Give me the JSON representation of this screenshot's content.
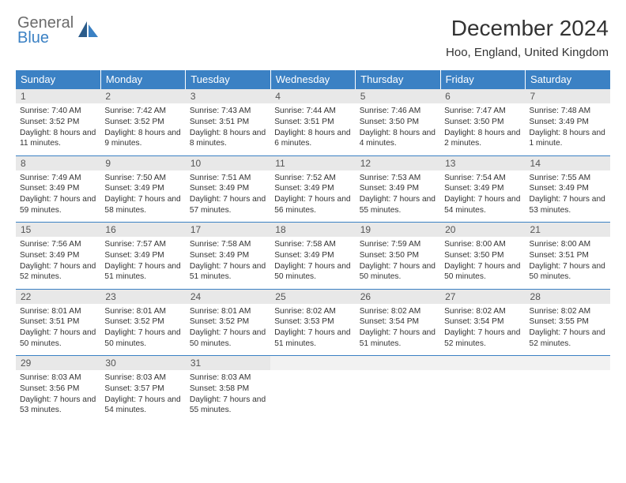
{
  "brand": {
    "top": "General",
    "bottom": "Blue"
  },
  "title": "December 2024",
  "location": "Hoo, England, United Kingdom",
  "colors": {
    "header_bg": "#3b81c4",
    "header_text": "#ffffff",
    "daynum_bg": "#e8e8e8",
    "border": "#3b81c4",
    "body_text": "#333333",
    "logo_gray": "#6b6b6b"
  },
  "typography": {
    "title_fontsize": 28,
    "location_fontsize": 15,
    "header_fontsize": 13,
    "daynum_fontsize": 12,
    "cell_fontsize": 10.2
  },
  "calendar": {
    "columns": [
      "Sunday",
      "Monday",
      "Tuesday",
      "Wednesday",
      "Thursday",
      "Friday",
      "Saturday"
    ],
    "weeks": [
      [
        {
          "day": "1",
          "sunrise": "7:40 AM",
          "sunset": "3:52 PM",
          "daylight": "8 hours and 11 minutes."
        },
        {
          "day": "2",
          "sunrise": "7:42 AM",
          "sunset": "3:52 PM",
          "daylight": "8 hours and 9 minutes."
        },
        {
          "day": "3",
          "sunrise": "7:43 AM",
          "sunset": "3:51 PM",
          "daylight": "8 hours and 8 minutes."
        },
        {
          "day": "4",
          "sunrise": "7:44 AM",
          "sunset": "3:51 PM",
          "daylight": "8 hours and 6 minutes."
        },
        {
          "day": "5",
          "sunrise": "7:46 AM",
          "sunset": "3:50 PM",
          "daylight": "8 hours and 4 minutes."
        },
        {
          "day": "6",
          "sunrise": "7:47 AM",
          "sunset": "3:50 PM",
          "daylight": "8 hours and 2 minutes."
        },
        {
          "day": "7",
          "sunrise": "7:48 AM",
          "sunset": "3:49 PM",
          "daylight": "8 hours and 1 minute."
        }
      ],
      [
        {
          "day": "8",
          "sunrise": "7:49 AM",
          "sunset": "3:49 PM",
          "daylight": "7 hours and 59 minutes."
        },
        {
          "day": "9",
          "sunrise": "7:50 AM",
          "sunset": "3:49 PM",
          "daylight": "7 hours and 58 minutes."
        },
        {
          "day": "10",
          "sunrise": "7:51 AM",
          "sunset": "3:49 PM",
          "daylight": "7 hours and 57 minutes."
        },
        {
          "day": "11",
          "sunrise": "7:52 AM",
          "sunset": "3:49 PM",
          "daylight": "7 hours and 56 minutes."
        },
        {
          "day": "12",
          "sunrise": "7:53 AM",
          "sunset": "3:49 PM",
          "daylight": "7 hours and 55 minutes."
        },
        {
          "day": "13",
          "sunrise": "7:54 AM",
          "sunset": "3:49 PM",
          "daylight": "7 hours and 54 minutes."
        },
        {
          "day": "14",
          "sunrise": "7:55 AM",
          "sunset": "3:49 PM",
          "daylight": "7 hours and 53 minutes."
        }
      ],
      [
        {
          "day": "15",
          "sunrise": "7:56 AM",
          "sunset": "3:49 PM",
          "daylight": "7 hours and 52 minutes."
        },
        {
          "day": "16",
          "sunrise": "7:57 AM",
          "sunset": "3:49 PM",
          "daylight": "7 hours and 51 minutes."
        },
        {
          "day": "17",
          "sunrise": "7:58 AM",
          "sunset": "3:49 PM",
          "daylight": "7 hours and 51 minutes."
        },
        {
          "day": "18",
          "sunrise": "7:58 AM",
          "sunset": "3:49 PM",
          "daylight": "7 hours and 50 minutes."
        },
        {
          "day": "19",
          "sunrise": "7:59 AM",
          "sunset": "3:50 PM",
          "daylight": "7 hours and 50 minutes."
        },
        {
          "day": "20",
          "sunrise": "8:00 AM",
          "sunset": "3:50 PM",
          "daylight": "7 hours and 50 minutes."
        },
        {
          "day": "21",
          "sunrise": "8:00 AM",
          "sunset": "3:51 PM",
          "daylight": "7 hours and 50 minutes."
        }
      ],
      [
        {
          "day": "22",
          "sunrise": "8:01 AM",
          "sunset": "3:51 PM",
          "daylight": "7 hours and 50 minutes."
        },
        {
          "day": "23",
          "sunrise": "8:01 AM",
          "sunset": "3:52 PM",
          "daylight": "7 hours and 50 minutes."
        },
        {
          "day": "24",
          "sunrise": "8:01 AM",
          "sunset": "3:52 PM",
          "daylight": "7 hours and 50 minutes."
        },
        {
          "day": "25",
          "sunrise": "8:02 AM",
          "sunset": "3:53 PM",
          "daylight": "7 hours and 51 minutes."
        },
        {
          "day": "26",
          "sunrise": "8:02 AM",
          "sunset": "3:54 PM",
          "daylight": "7 hours and 51 minutes."
        },
        {
          "day": "27",
          "sunrise": "8:02 AM",
          "sunset": "3:54 PM",
          "daylight": "7 hours and 52 minutes."
        },
        {
          "day": "28",
          "sunrise": "8:02 AM",
          "sunset": "3:55 PM",
          "daylight": "7 hours and 52 minutes."
        }
      ],
      [
        {
          "day": "29",
          "sunrise": "8:03 AM",
          "sunset": "3:56 PM",
          "daylight": "7 hours and 53 minutes."
        },
        {
          "day": "30",
          "sunrise": "8:03 AM",
          "sunset": "3:57 PM",
          "daylight": "7 hours and 54 minutes."
        },
        {
          "day": "31",
          "sunrise": "8:03 AM",
          "sunset": "3:58 PM",
          "daylight": "7 hours and 55 minutes."
        },
        null,
        null,
        null,
        null
      ]
    ],
    "labels": {
      "sunrise": "Sunrise: ",
      "sunset": "Sunset: ",
      "daylight": "Daylight: "
    }
  }
}
